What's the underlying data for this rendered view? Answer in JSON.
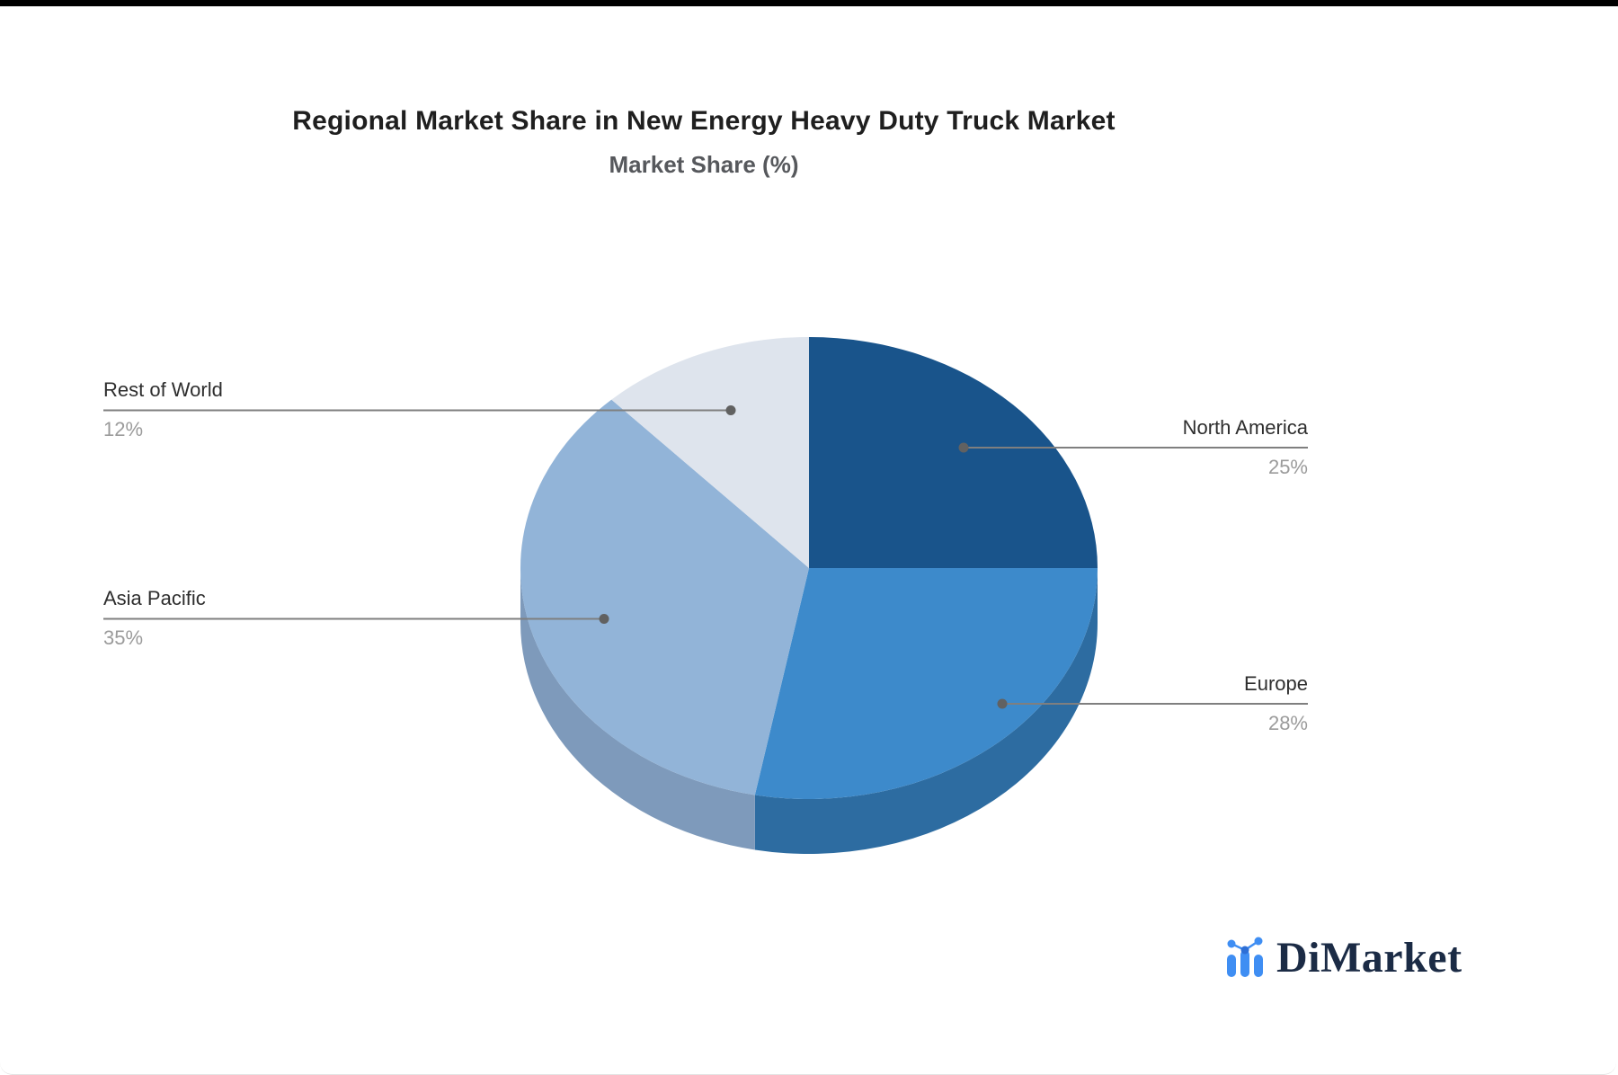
{
  "chart_data": {
    "type": "pie",
    "title": "Regional Market Share in New Energy Heavy Duty Truck Market",
    "subtitle": "Market Share (%)",
    "unit": "%",
    "categories": [
      "North America",
      "Europe",
      "Asia Pacific",
      "Rest of World"
    ],
    "values": [
      25,
      28,
      35,
      12
    ],
    "colors": [
      "#19548B",
      "#3D8ACB",
      "#92B4D8",
      "#DEE4ED"
    ],
    "depth_colors": [
      "#123F6A",
      "#2D6CA1",
      "#7E9ABB",
      "#B7C1CF"
    ],
    "style": "3d",
    "start_angle_deg": 0,
    "direction": "clockwise",
    "legend": "none",
    "data_labels": "callout-lines"
  },
  "callouts": [
    {
      "name": "North America",
      "value": "25%",
      "side": "right"
    },
    {
      "name": "Europe",
      "value": "28%",
      "side": "right"
    },
    {
      "name": "Asia Pacific",
      "value": "35%",
      "side": "left"
    },
    {
      "name": "Rest of World",
      "value": "12%",
      "side": "left"
    }
  ],
  "logo": {
    "text": "DiMarket",
    "icon": "bar-line-chart-icon"
  },
  "colors": {
    "leader_line": "#7F7F7F",
    "dot": "#616161",
    "label_text": "#2E2E2E",
    "value_text": "#9B9B9B",
    "title": "#1F1F1F",
    "subtitle": "#56585C",
    "logo_text": "#1B2B45",
    "logo_icon_blue": "#3F8EF3",
    "logo_icon_dark_blue": "#2D6FD6"
  }
}
